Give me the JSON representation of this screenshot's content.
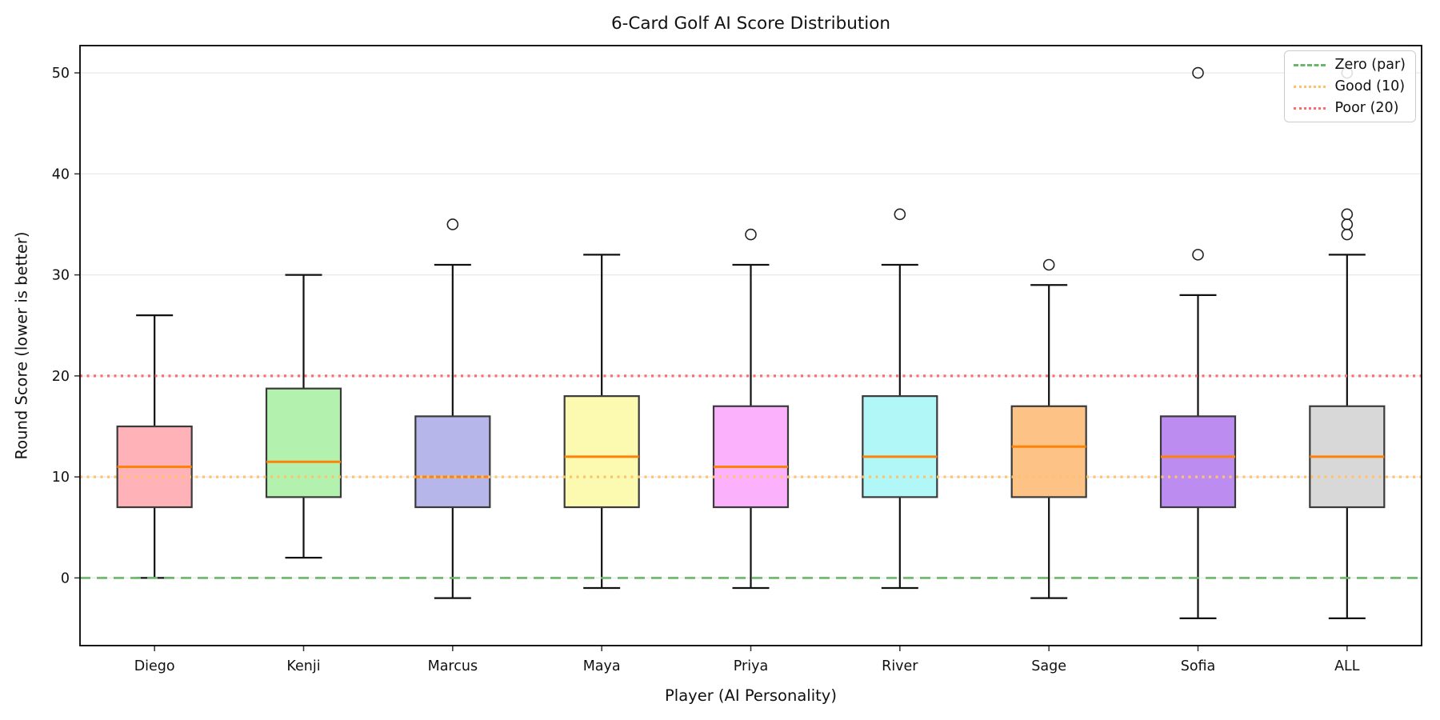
{
  "title": "6-Card Golf AI Score Distribution",
  "chart_data": {
    "type": "box",
    "title": "6-Card Golf AI Score Distribution",
    "xlabel": "Player (AI Personality)",
    "ylabel": "Round Score (lower is better)",
    "categories": [
      "Diego",
      "Kenji",
      "Marcus",
      "Maya",
      "Priya",
      "River",
      "Sage",
      "Sofia",
      "ALL"
    ],
    "y_ticks": [
      0,
      10,
      20,
      30,
      40,
      50
    ],
    "ylim": [
      -6.7,
      52.7
    ],
    "grid": true,
    "legend_position": "upper right",
    "boxes": [
      {
        "player": "Diego",
        "whisker_low": 0,
        "q1": 7,
        "median": 11,
        "q3": 15,
        "whisker_high": 26,
        "outliers": [],
        "fill": "#ffb3b8"
      },
      {
        "player": "Kenji",
        "whisker_low": 2,
        "q1": 8,
        "median": 11.5,
        "q3": 18.75,
        "whisker_high": 30,
        "outliers": [],
        "fill": "#b3f2ae"
      },
      {
        "player": "Marcus",
        "whisker_low": -2,
        "q1": 7,
        "median": 10,
        "q3": 16,
        "whisker_high": 31,
        "outliers": [
          35
        ],
        "fill": "#b6b6ea"
      },
      {
        "player": "Maya",
        "whisker_low": -1,
        "q1": 7,
        "median": 12,
        "q3": 18,
        "whisker_high": 32,
        "outliers": [],
        "fill": "#fcf9b0"
      },
      {
        "player": "Priya",
        "whisker_low": -1,
        "q1": 7,
        "median": 11,
        "q3": 17,
        "whisker_high": 31,
        "outliers": [
          34
        ],
        "fill": "#fcb1fc"
      },
      {
        "player": "River",
        "whisker_low": -1,
        "q1": 8,
        "median": 12,
        "q3": 18,
        "whisker_high": 31,
        "outliers": [
          36
        ],
        "fill": "#b2f7f7"
      },
      {
        "player": "Sage",
        "whisker_low": -2,
        "q1": 8,
        "median": 13,
        "q3": 17,
        "whisker_high": 29,
        "outliers": [
          31
        ],
        "fill": "#fdc285"
      },
      {
        "player": "Sofia",
        "whisker_low": -4,
        "q1": 7,
        "median": 12,
        "q3": 16,
        "whisker_high": 28,
        "outliers": [
          32,
          50
        ],
        "fill": "#bd8cf0"
      },
      {
        "player": "ALL",
        "whisker_low": -4,
        "q1": 7,
        "median": 12,
        "q3": 17,
        "whisker_high": 32,
        "outliers": [
          34,
          35,
          36,
          50
        ],
        "fill": "#d8d8d8"
      }
    ],
    "reference_lines": [
      {
        "label": "Zero (par)",
        "value": 0,
        "color": "#6ab76a",
        "style": "dashed"
      },
      {
        "label": "Good (10)",
        "value": 10,
        "color": "#fdc36c",
        "style": "dotted"
      },
      {
        "label": "Poor (20)",
        "value": 20,
        "color": "#fa6e6e",
        "style": "dotted"
      }
    ],
    "colors": {
      "median_line": "#fd8205",
      "box_edge": "#3a3a3a",
      "whisker": "#111111",
      "flier_edge": "#222222",
      "grid": "#e8e8e8",
      "frame": "#000000"
    }
  }
}
